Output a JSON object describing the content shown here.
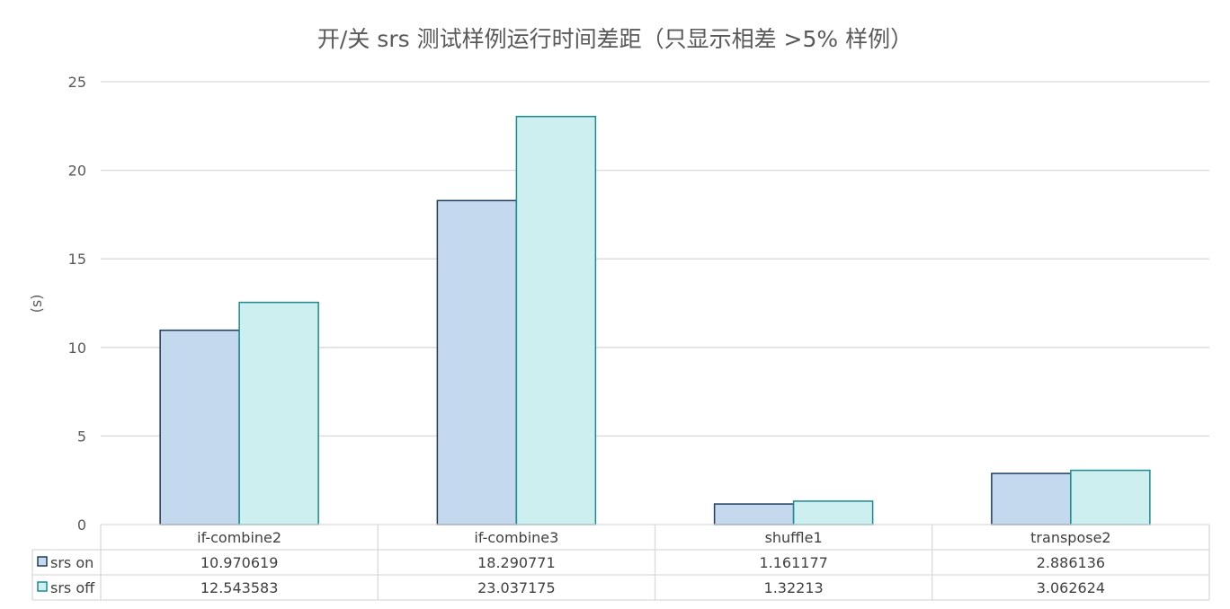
{
  "chart_data": {
    "type": "bar",
    "title": "开/关 srs 测试样例运行时间差距（只显示相差 >5% 样例）",
    "ylabel": "(s)",
    "xlabel": "",
    "ylim": [
      0,
      25
    ],
    "yticks": [
      0,
      5,
      10,
      15,
      20,
      25
    ],
    "grid": true,
    "legend": "data-table",
    "categories": [
      "if-combine2",
      "if-combine3",
      "shuffle1",
      "transpose2"
    ],
    "series": [
      {
        "name": "srs on",
        "values": [
          10.970619,
          18.290771,
          1.161177,
          2.886136
        ],
        "labels": [
          "10.970619",
          "18.290771",
          "1.161177",
          "2.886136"
        ],
        "fill": "#c5d9ee",
        "stroke": "#1f3b5c"
      },
      {
        "name": "srs off",
        "values": [
          12.543583,
          23.037175,
          1.32213,
          3.062624
        ],
        "labels": [
          "12.543583",
          "23.037175",
          "1.32213",
          "3.062624"
        ],
        "fill": "#cdeff0",
        "stroke": "#1b8a8f"
      }
    ]
  }
}
